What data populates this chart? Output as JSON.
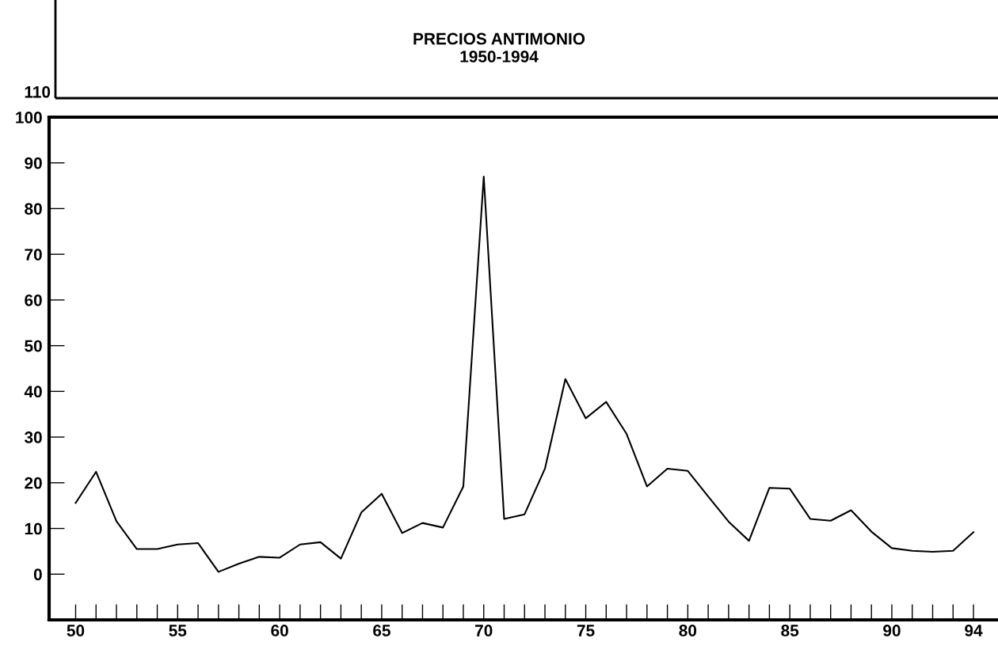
{
  "chart_data": {
    "type": "line",
    "title": "PRECIOS ANTIMONIO\n1950-1994",
    "x": [
      1950,
      1951,
      1952,
      1953,
      1954,
      1955,
      1956,
      1957,
      1958,
      1959,
      1960,
      1961,
      1962,
      1963,
      1964,
      1965,
      1966,
      1967,
      1968,
      1969,
      1970,
      1971,
      1972,
      1973,
      1974,
      1975,
      1976,
      1977,
      1978,
      1979,
      1980,
      1981,
      1982,
      1983,
      1984,
      1985,
      1986,
      1987,
      1988,
      1989,
      1990,
      1991,
      1992,
      1993,
      1994
    ],
    "series": [
      {
        "color": "#000000",
        "values": [
          15.6,
          22.4,
          11.6,
          5.5,
          5.5,
          6.5,
          6.8,
          0.5,
          2.3,
          3.8,
          3.6,
          6.5,
          7.0,
          3.4,
          13.5,
          17.6,
          9.0,
          11.2,
          10.2,
          19.2,
          87.0,
          12.1,
          13.1,
          23.1,
          42.7,
          34.1,
          37.7,
          30.7,
          19.2,
          23.1,
          22.6,
          17.0,
          11.5,
          7.3,
          18.9,
          18.7,
          12.1,
          11.7,
          14.0,
          9.3,
          5.7,
          5.1,
          4.9,
          5.1,
          9.2
        ]
      }
    ],
    "xlim": [
      1948.7,
      1995.3
    ],
    "xticks": [
      {
        "value": 1950,
        "label": "50"
      },
      {
        "value": 1955,
        "label": "55"
      },
      {
        "value": 1960,
        "label": "60"
      },
      {
        "value": 1965,
        "label": "65"
      },
      {
        "value": 1970,
        "label": "70"
      },
      {
        "value": 1975,
        "label": "75"
      },
      {
        "value": 1980,
        "label": "80"
      },
      {
        "value": 1985,
        "label": "85"
      },
      {
        "value": 1990,
        "label": "90"
      },
      {
        "value": 1994,
        "label": "94"
      }
    ],
    "ylim": [
      -10,
      100
    ],
    "yticks": [
      0,
      10,
      20,
      30,
      40,
      50,
      60,
      70,
      80,
      90,
      100
    ],
    "annotations": [
      "110"
    ],
    "grid": false,
    "marker": "none",
    "line_style": "solid"
  }
}
